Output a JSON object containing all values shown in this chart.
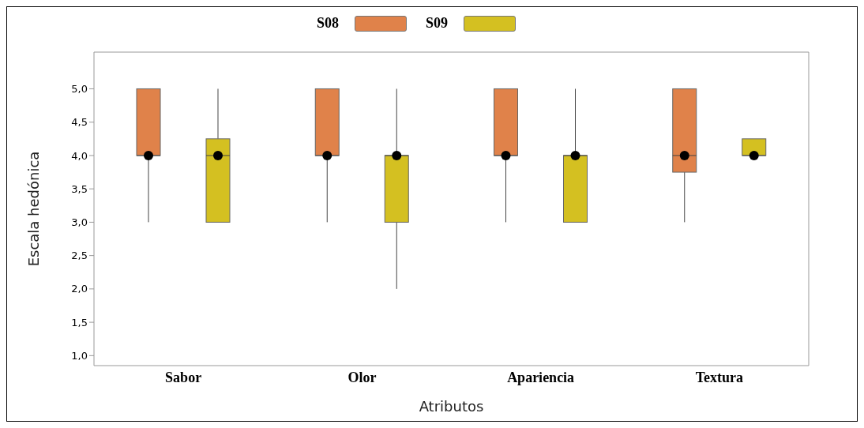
{
  "chart_data": {
    "type": "box",
    "xlabel": "Atributos",
    "ylabel": "Escala hedónica",
    "categories": [
      "Sabor",
      "Olor",
      "Apariencia",
      "Textura"
    ],
    "ylim": [
      0.85,
      5.55
    ],
    "yticks": [
      {
        "value": 1,
        "label": "1,0"
      },
      {
        "value": 1.5,
        "label": "1,5"
      },
      {
        "value": 2,
        "label": "2,0"
      },
      {
        "value": 2.5,
        "label": "2,5"
      },
      {
        "value": 3,
        "label": "3,0"
      },
      {
        "value": 3.5,
        "label": "3,5"
      },
      {
        "value": 4,
        "label": "4,0"
      },
      {
        "value": 4.5,
        "label": "4,5"
      },
      {
        "value": 5,
        "label": "5,0"
      }
    ],
    "grid": false,
    "legend": "top",
    "marker": "circle",
    "series": [
      {
        "name": "S08",
        "color": "#e0824a",
        "boxes": [
          {
            "low": 3,
            "q1": 4,
            "median": 4,
            "q3": 5,
            "high": 5,
            "mean": 4
          },
          {
            "low": 3,
            "q1": 4,
            "median": 4,
            "q3": 5,
            "high": 5,
            "mean": 4
          },
          {
            "low": 3,
            "q1": 4,
            "median": 4,
            "q3": 5,
            "high": 5,
            "mean": 4
          },
          {
            "low": 3,
            "q1": 3.75,
            "median": 4,
            "q3": 5,
            "high": 5,
            "mean": 4
          }
        ]
      },
      {
        "name": "S09",
        "color": "#d4c021",
        "boxes": [
          {
            "low": 3,
            "q1": 3,
            "median": 4,
            "q3": 4.25,
            "high": 5,
            "mean": 4
          },
          {
            "low": 2,
            "q1": 3,
            "median": 4,
            "q3": 4,
            "high": 5,
            "mean": 4
          },
          {
            "low": 3,
            "q1": 3,
            "median": 4,
            "q3": 4,
            "high": 5,
            "mean": 4
          },
          {
            "low": 4,
            "q1": 4,
            "median": 4,
            "q3": 4.25,
            "high": 4.25,
            "mean": 4
          }
        ]
      }
    ]
  }
}
